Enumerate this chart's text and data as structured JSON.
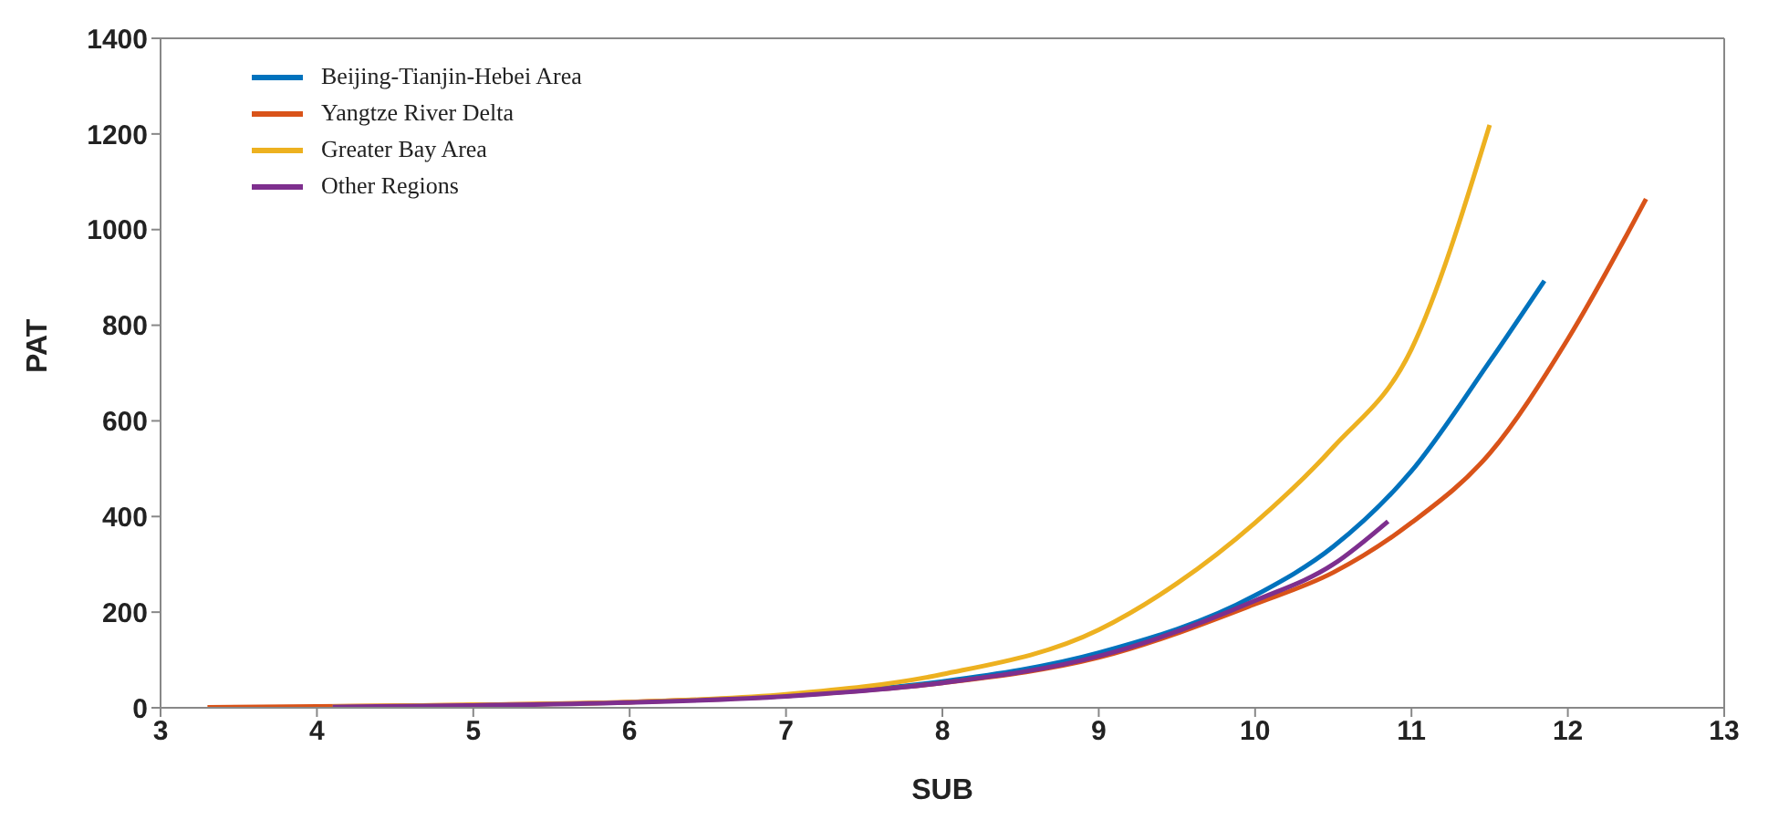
{
  "chart_data": {
    "type": "line",
    "xlabel": "SUB",
    "ylabel": "PAT",
    "xlim": [
      3,
      13
    ],
    "xticks": [
      3,
      4,
      5,
      6,
      7,
      8,
      9,
      10,
      11,
      12,
      13
    ],
    "ylim": [
      0,
      1400
    ],
    "yticks": [
      0,
      200,
      400,
      600,
      800,
      1000,
      1200,
      1400
    ],
    "grid": false,
    "legend": "top left",
    "marker": "none",
    "line_style": "solid",
    "series": [
      {
        "name": "Beijing-Tianjin-Hebei Area",
        "color": "#0072bd",
        "x": [
          7,
          8,
          9,
          10,
          10.5,
          11,
          11.5,
          11.85
        ],
        "values": [
          25,
          55,
          115,
          235,
          337,
          495,
          724,
          893
        ]
      },
      {
        "name": "Yangtze River Delta",
        "color": "#d95319",
        "x": [
          3.3,
          4,
          5,
          6,
          7,
          8,
          9,
          10,
          10.5,
          11,
          11.5,
          12,
          12.5
        ],
        "values": [
          1,
          3,
          6,
          12,
          25,
          52,
          105,
          217,
          283,
          387,
          532,
          771,
          1064
        ]
      },
      {
        "name": "Greater Bay Area",
        "color": "#edb120",
        "x": [
          4.1,
          5,
          6,
          7,
          8,
          9,
          9.5,
          10,
          10.5,
          11,
          11.5
        ],
        "values": [
          3,
          6,
          12,
          28,
          70,
          163,
          260,
          387,
          545,
          750,
          1219
        ]
      },
      {
        "name": "Other Regions",
        "color": "#7e2f8e",
        "x": [
          4.1,
          5,
          6,
          7,
          8,
          9,
          10,
          10.5,
          10.85
        ],
        "values": [
          2,
          5,
          11,
          24,
          52,
          108,
          224,
          300,
          390
        ]
      }
    ]
  }
}
